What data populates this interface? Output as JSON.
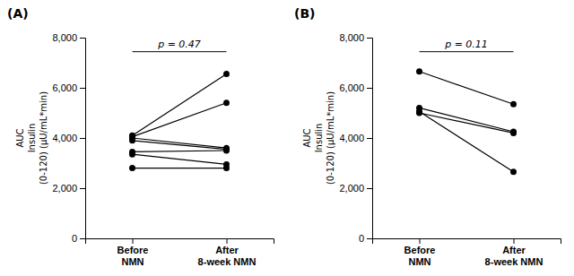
{
  "chart_data": [
    {
      "type": "line",
      "title": "(A)",
      "annotation": "p = 0.47",
      "ylabel": "AUC\nInsulin\n(0-120) (μU/mL*min)",
      "categories": [
        "Before\nNMN",
        "After\n8-week NMN"
      ],
      "series": [
        {
          "values": [
            4100,
            6550
          ]
        },
        {
          "values": [
            4050,
            5400
          ]
        },
        {
          "values": [
            3900,
            3550
          ]
        },
        {
          "values": [
            3450,
            3500
          ]
        },
        {
          "values": [
            3350,
            2950
          ]
        },
        {
          "values": [
            2800,
            2800
          ]
        },
        {
          "values": [
            4000,
            3600
          ]
        }
      ],
      "color": "black",
      "marker": "circle",
      "line_style": "solid",
      "grid": false,
      "ylim": [
        0,
        8000
      ],
      "yticks": [
        0,
        {
          "value": 2000,
          "label": "2,000"
        },
        {
          "value": 4000,
          "label": "4,000"
        },
        {
          "value": 6000,
          "label": "6,000"
        },
        {
          "value": 8000,
          "label": "8,000"
        }
      ]
    },
    {
      "type": "line",
      "title": "(B)",
      "annotation": "p = 0.11",
      "ylabel": "AUC\nInsulin\n(0-120) (μU/mL*min)",
      "categories": [
        "Before\nNMN",
        "After\n8-week NMN"
      ],
      "series": [
        {
          "values": [
            6650,
            5350
          ]
        },
        {
          "values": [
            5200,
            4250
          ]
        },
        {
          "values": [
            5050,
            2650
          ]
        },
        {
          "values": [
            5000,
            4200
          ]
        }
      ],
      "color": "black",
      "marker": "circle",
      "line_style": "solid",
      "grid": false,
      "ylim": [
        0,
        8000
      ],
      "yticks": [
        0,
        {
          "value": 2000,
          "label": "2,000"
        },
        {
          "value": 4000,
          "label": "4,000"
        },
        {
          "value": 6000,
          "label": "6,000"
        },
        {
          "value": 8000,
          "label": "8,000"
        }
      ]
    }
  ]
}
